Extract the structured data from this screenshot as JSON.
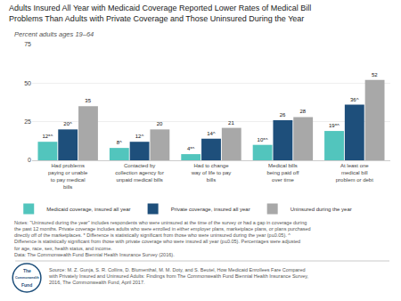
{
  "chart_data": {
    "type": "bar",
    "title": "Adults Insured All Year with Medicaid Coverage Reported Lower Rates of Medical Bill\nProblems Than Adults with Private Coverage and Those Uninsured During the Year",
    "subtitle": "Percent adults ages 19–64",
    "categories": [
      "Had problems\npaying or unable\nto pay medical\nbills",
      "Contacted by\ncollection agency for\nunpaid medical bills",
      "Had to change\nway of life to pay\nbills",
      "Medical bills\nbeing paid off\nover time",
      "At least one\nmedical bill\nproblem or debt"
    ],
    "series": [
      {
        "name": "Medicaid coverage, insured all year",
        "color": "#52c5bd",
        "values": [
          12,
          8,
          4,
          10,
          19
        ],
        "value_labels": [
          "12*^",
          "8^",
          "4*^",
          "10*^",
          "19*^"
        ]
      },
      {
        "name": "Private coverage, insured all year",
        "color": "#1e4f7b",
        "values": [
          20,
          12,
          14,
          26,
          36
        ],
        "value_labels": [
          "20^",
          "12^",
          "14^",
          "26",
          "36^"
        ]
      },
      {
        "name": "Uninsured during the year",
        "color": "#a8a8a8",
        "values": [
          35,
          20,
          21,
          28,
          52
        ],
        "value_labels": [
          "35",
          "20",
          "21",
          "28",
          "52"
        ]
      }
    ],
    "ylim": [
      0,
      75
    ],
    "yticks": [
      0,
      25,
      50,
      75
    ],
    "grid": true,
    "legend": "bottom",
    "data_labels": true,
    "notes": [
      "Notes: \"Uninsured during the year\" includes respondents who were uninsured at the time of the survey or had a gap in coverage during the past 12 months. Private coverage includes adults who",
      "were enrolled in either employer plans, marketplace plans, or plans purchased directly off of the marketplaces. * Difference is statistically significant from those who were uninsured",
      "during the year (p≤0.05). ^ Difference is statistically significant from those with private coverage who were insured all year (p≤0.05). Percentages were adjusted for age, race, sex,",
      "health status, and income.",
      "Data: The Commonwealth Fund Biennial Health Insurance Survey (2016)."
    ],
    "source": [
      "Source: M. Z. Gunja, S. R. Collins, D. Blumenthal, M. M. Doty, and S. Beutel, How Medicaid Enrollees Fare Compared with Privately Insured and",
      "Uninsured Adults: Findings from The Commonwealth Fund Biennial Health Insurance Survey, 2016, The Commonwealth Fund, April 2017."
    ],
    "logo": [
      "The",
      "Commonwealth",
      "Fund"
    ]
  }
}
